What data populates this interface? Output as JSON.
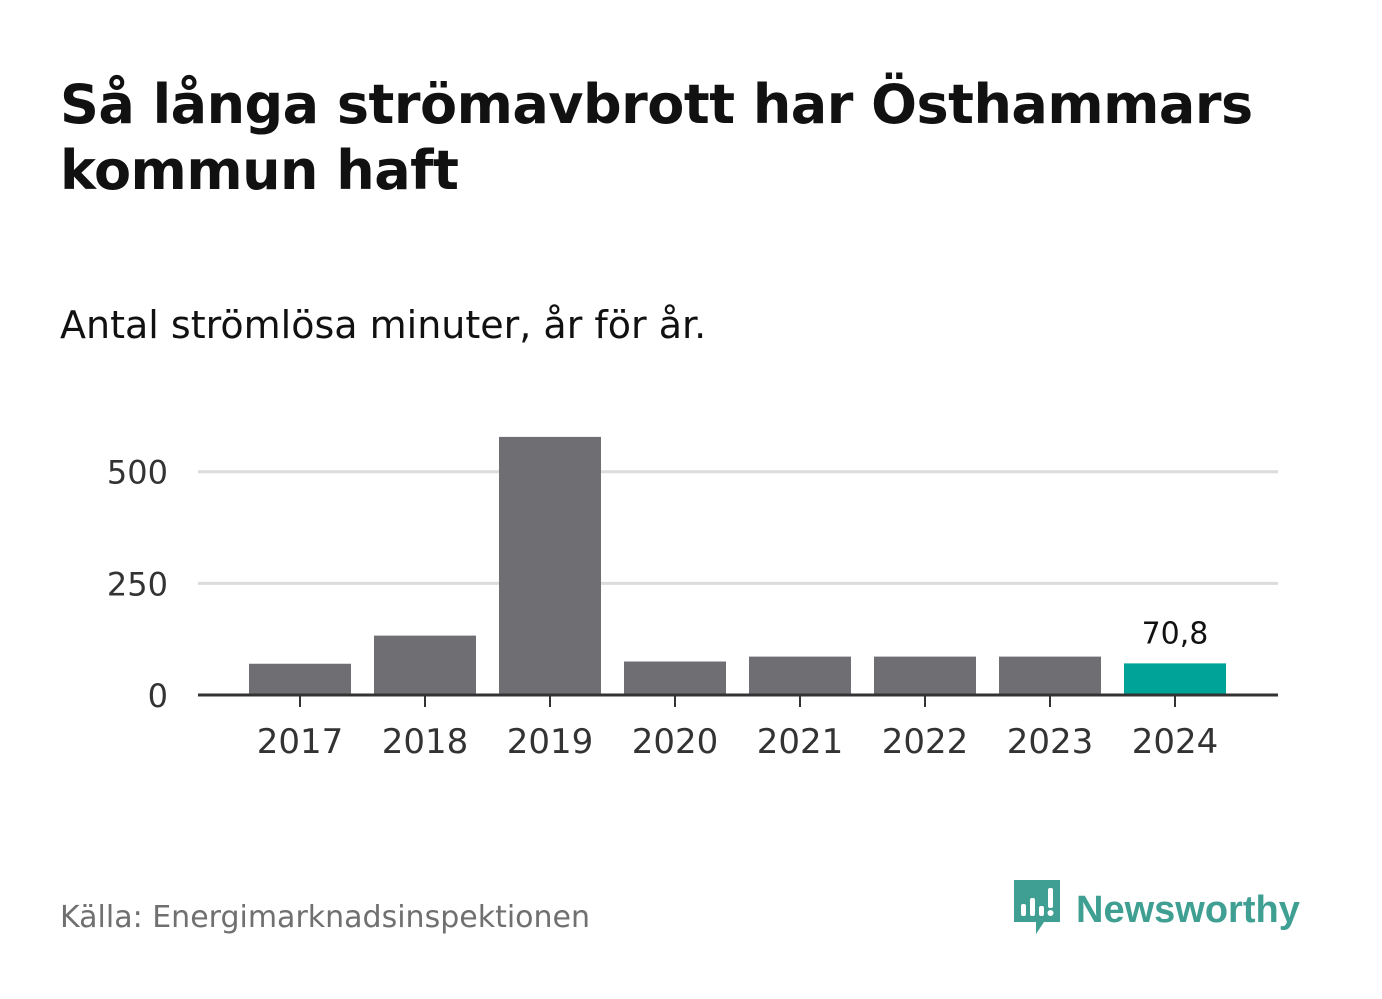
{
  "title": "Så långa strömavbrott har Östhammars kommun haft",
  "subtitle": "Antal strömlösa minuter, år för år.",
  "source": "Källa: Energimarknadsinspektionen",
  "brand": {
    "name": "Newsworthy",
    "icon": "newsworthy-logo-icon"
  },
  "colors": {
    "bar": "#6f6e73",
    "highlight": "#00a398",
    "grid": "#dcdcdc",
    "axis": "#333333",
    "brand": "#3f9f92"
  },
  "chart_data": {
    "type": "bar",
    "categories": [
      "2017",
      "2018",
      "2019",
      "2020",
      "2021",
      "2022",
      "2023",
      "2024"
    ],
    "values": [
      70,
      133,
      578,
      75,
      86,
      86,
      86,
      70.8
    ],
    "highlight_index": 7,
    "data_labels": [
      {
        "index": 7,
        "text": "70,8"
      }
    ],
    "yticks": [
      0,
      250,
      500
    ],
    "ytick_labels": [
      "0",
      "250",
      "500"
    ],
    "ylim": [
      0,
      580
    ],
    "grid": true,
    "xlabel": "",
    "ylabel": ""
  }
}
